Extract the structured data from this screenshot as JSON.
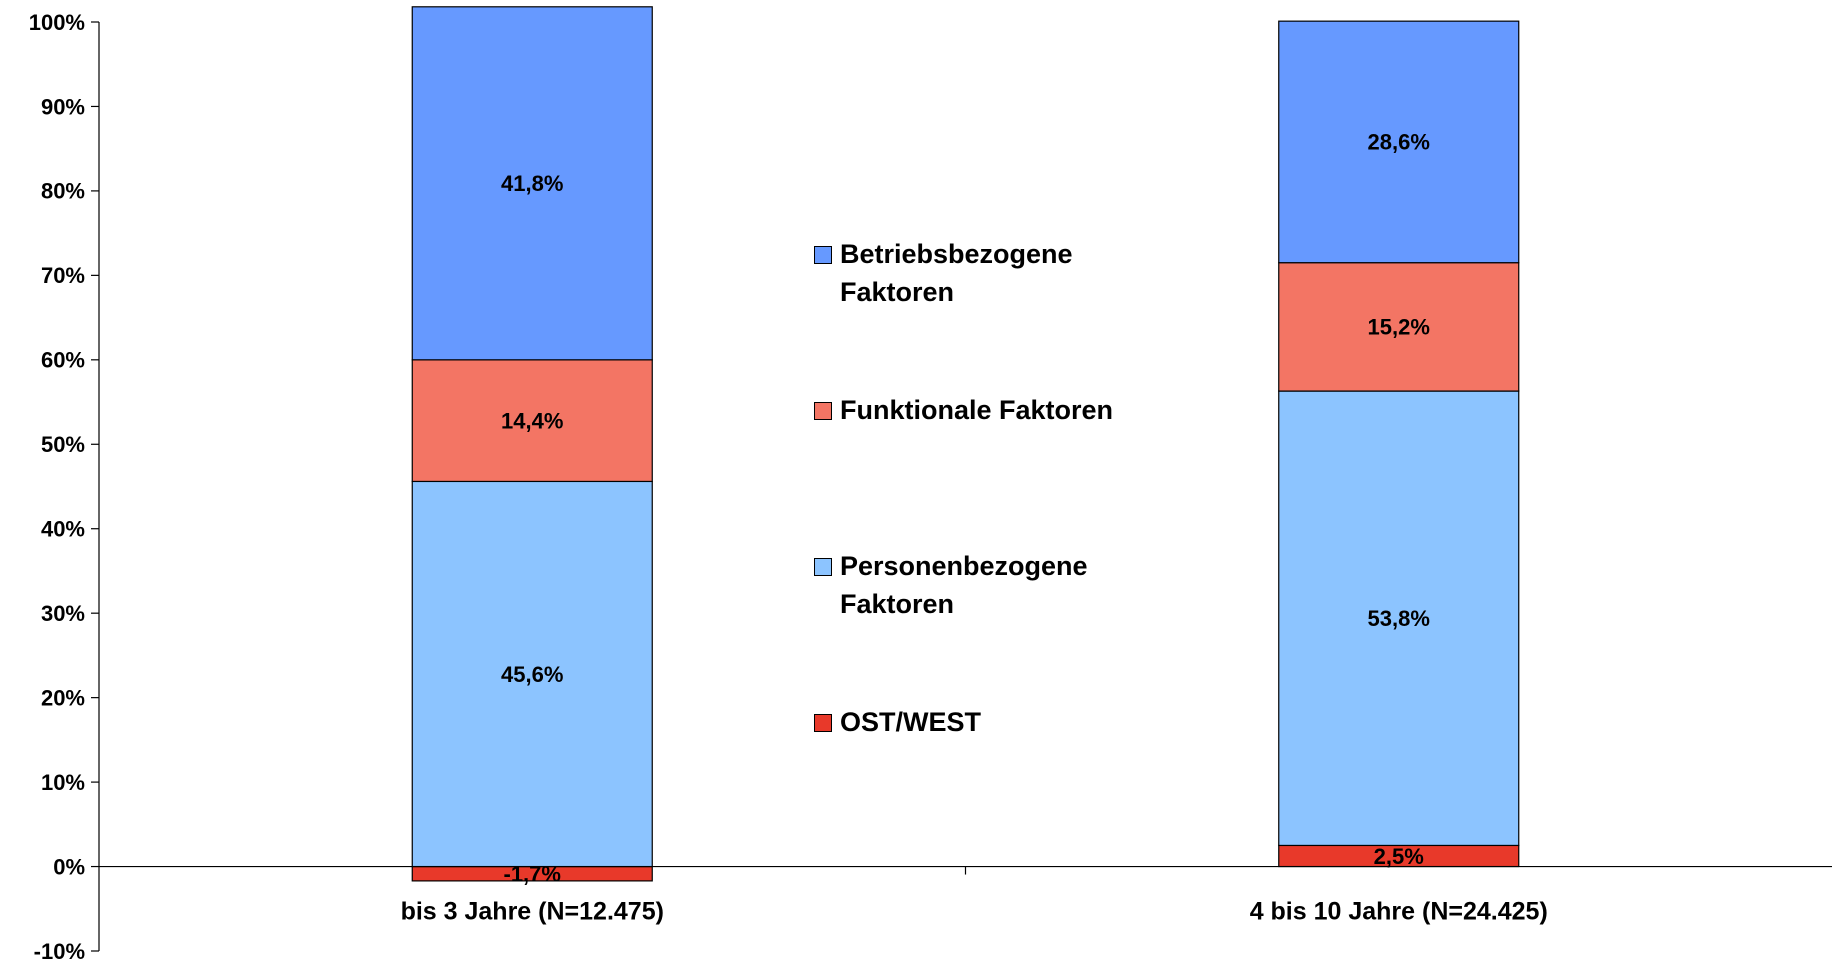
{
  "chart_data": {
    "type": "stacked_bar",
    "categories": [
      "bis 3 Jahre (N=12.475)",
      "4 bis 10 Jahre (N=24.425)"
    ],
    "series": [
      {
        "name": "OST/WEST",
        "color": "#e8392a",
        "values": [
          -1.7,
          2.5
        ],
        "value_labels": [
          "-1,7%",
          "2,5%"
        ]
      },
      {
        "name": "Personenbezogene Faktoren",
        "color": "#8cc4ff",
        "values": [
          45.6,
          53.8
        ],
        "value_labels": [
          "45,6%",
          "53,8%"
        ]
      },
      {
        "name": "Funktionale Faktoren",
        "color": "#f37564",
        "values": [
          14.4,
          15.2
        ],
        "value_labels": [
          "14,4%",
          "15,2%"
        ]
      },
      {
        "name": "Betriebsbezogene Faktoren",
        "color": "#6699ff",
        "values": [
          41.8,
          28.6
        ],
        "value_labels": [
          "41,8%",
          "28,6%"
        ]
      }
    ],
    "ylim": [
      -10,
      100
    ],
    "yticks": [
      {
        "value": -10,
        "label": "-10%"
      },
      {
        "value": 0,
        "label": "0%"
      },
      {
        "value": 10,
        "label": "10%"
      },
      {
        "value": 20,
        "label": "20%"
      },
      {
        "value": 30,
        "label": "30%"
      },
      {
        "value": 40,
        "label": "40%"
      },
      {
        "value": 50,
        "label": "50%"
      },
      {
        "value": 60,
        "label": "60%"
      },
      {
        "value": 70,
        "label": "70%"
      },
      {
        "value": 80,
        "label": "80%"
      },
      {
        "value": 90,
        "label": "90%"
      },
      {
        "value": 100,
        "label": "100%"
      }
    ],
    "grid": false,
    "legend": "center"
  }
}
